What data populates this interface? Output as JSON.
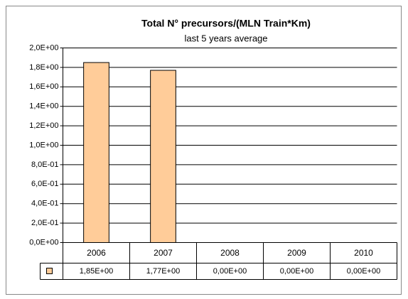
{
  "chart_data": {
    "type": "bar",
    "title": "Total N° precursors/(MLN Train*Km)",
    "subtitle": "last 5 years average",
    "categories": [
      "2006",
      "2007",
      "2008",
      "2009",
      "2010"
    ],
    "values": [
      1.85,
      1.77,
      0,
      0,
      0
    ],
    "value_labels": [
      "1,85E+00",
      "1,77E+00",
      "0,00E+00",
      "0,00E+00",
      "0,00E+00"
    ],
    "color": "#ffcc99",
    "ylim": [
      0,
      2
    ],
    "yticks": [
      {
        "value": 0,
        "label": "0,0E+00"
      },
      {
        "value": 0.2,
        "label": "2,0E-01"
      },
      {
        "value": 0.4,
        "label": "4,0E-01"
      },
      {
        "value": 0.6,
        "label": "6,0E-01"
      },
      {
        "value": 0.8,
        "label": "8,0E-01"
      },
      {
        "value": 1,
        "label": "1,0E+00"
      },
      {
        "value": 1.2,
        "label": "1,2E+00"
      },
      {
        "value": 1.4,
        "label": "1,4E+00"
      },
      {
        "value": 1.6,
        "label": "1,6E+00"
      },
      {
        "value": 1.8,
        "label": "1,8E+00"
      },
      {
        "value": 2,
        "label": "2,0E+00"
      }
    ],
    "grid": true
  }
}
